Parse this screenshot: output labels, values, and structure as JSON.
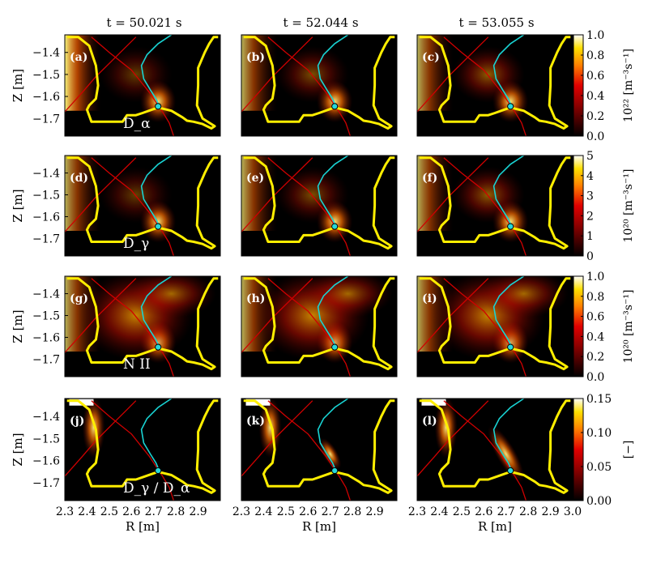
{
  "chart_data": {
    "type": "heatmap",
    "column_titles": [
      "t = 50.021 s",
      "t = 52.044 s",
      "t = 53.055 s"
    ],
    "xlabel": "R [m]",
    "ylabel": "Z [m]",
    "xlim": [
      2.3,
      3.0
    ],
    "ylim": [
      -1.78,
      -1.32
    ],
    "x_ticks": [
      "2.3",
      "2.4",
      "2.5",
      "2.6",
      "2.7",
      "2.8",
      "2.9",
      "3.0"
    ],
    "y_ticks": [
      "−1.4",
      "−1.5",
      "−1.6",
      "−1.7"
    ],
    "colormap": "hot",
    "strike_point": {
      "R": 2.72,
      "Z": -1.645
    },
    "rows": [
      {
        "species": "D_α",
        "panel_labels": [
          "(a)",
          "(b)",
          "(c)"
        ],
        "colorbar": {
          "label": "10²² [m⁻³s⁻¹]",
          "ticks": [
            "0.0",
            "0.2",
            "0.4",
            "0.6",
            "0.8",
            "1.0"
          ],
          "range": [
            0.0,
            1.0
          ]
        }
      },
      {
        "species": "D_γ",
        "panel_labels": [
          "(d)",
          "(e)",
          "(f)"
        ],
        "colorbar": {
          "label": "10²⁰ [m⁻³s⁻¹]",
          "ticks": [
            "0",
            "1",
            "2",
            "3",
            "4",
            "5"
          ],
          "range": [
            0,
            5
          ]
        }
      },
      {
        "species": "N II",
        "panel_labels": [
          "(g)",
          "(h)",
          "(i)"
        ],
        "colorbar": {
          "label": "10²⁰ [m⁻³s⁻¹]",
          "ticks": [
            "0.0",
            "0.2",
            "0.4",
            "0.6",
            "0.8",
            "1.0"
          ],
          "range": [
            0.0,
            1.0
          ]
        }
      },
      {
        "species": "D_γ / D_α",
        "panel_labels": [
          "(j)",
          "(k)",
          "(l)"
        ],
        "colorbar": {
          "label": "[−]",
          "ticks": [
            "0.00",
            "0.05",
            "0.10",
            "0.15"
          ],
          "range": [
            0.0,
            0.15
          ]
        }
      }
    ]
  }
}
